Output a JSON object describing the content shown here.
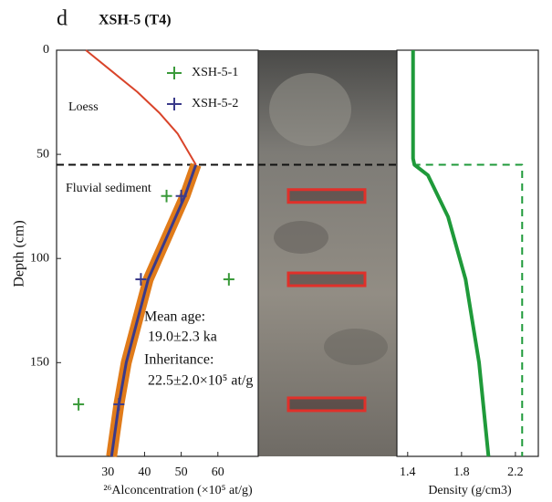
{
  "panel_label": "d",
  "title": "XSH-5 (T4)",
  "chart_data": [
    {
      "type": "scatter",
      "x_label": "²⁶Alconcentration (×10⁵ at/g)",
      "y_label": "Depth (cm)",
      "xlim": [
        16,
        71
      ],
      "ylim": [
        0,
        195
      ],
      "xticks": [
        30,
        40,
        50,
        60
      ],
      "yticks": [
        0,
        50,
        100,
        150
      ],
      "boundary_depth": 55,
      "annotations": [
        "Loess",
        "Fluvial sediment",
        "Mean age:",
        "19.0±2.3 ka",
        "Inheritance:",
        "22.5±2.0×10⁵ at/g"
      ],
      "series": [
        {
          "name": "XSH-5-1",
          "color": "#3a9a3a",
          "x": [
            46,
            63,
            22
          ],
          "y": [
            70,
            110,
            170
          ],
          "xerr": [
            1.5,
            1.5,
            1.5
          ],
          "yerr": [
            3,
            3,
            3
          ]
        },
        {
          "name": "XSH-5-2",
          "color": "#3a3a8a",
          "x": [
            50,
            39,
            33
          ],
          "y": [
            70,
            110,
            170
          ],
          "xerr": [
            1.5,
            1.5,
            1.5
          ],
          "yerr": [
            3,
            3,
            3
          ]
        }
      ],
      "lines": [
        {
          "color": "#e07b1a",
          "width": 12,
          "x": [
            54,
            51,
            41,
            35,
            33,
            31
          ],
          "y": [
            55,
            70,
            110,
            150,
            170,
            195
          ]
        },
        {
          "color": "#3a3a8a",
          "width": 3,
          "x": [
            54,
            51,
            41,
            35,
            33,
            31
          ],
          "y": [
            55,
            70,
            110,
            150,
            170,
            195
          ]
        },
        {
          "color": "#d9442a",
          "width": 2,
          "x": [
            24,
            31,
            38,
            44,
            49,
            54
          ],
          "y": [
            0,
            10,
            20,
            30,
            40,
            55
          ]
        }
      ]
    },
    {
      "type": "line",
      "x_label": "Density (g/cm3)",
      "xlim": [
        1.32,
        2.37
      ],
      "ylim": [
        0,
        195
      ],
      "xticks": [
        1.4,
        1.8,
        2.2
      ],
      "lines": [
        {
          "color": "#1f9a3a",
          "width": 4,
          "x": [
            1.44,
            1.44,
            1.45,
            1.55,
            1.7,
            1.83,
            1.93,
            2.0
          ],
          "y": [
            0,
            52,
            55,
            60,
            80,
            110,
            150,
            195
          ]
        },
        {
          "color": "#1f9a3a",
          "width": 2,
          "dashed": true,
          "x": [
            1.44,
            2.25,
            2.25
          ],
          "y": [
            55,
            55,
            195
          ]
        }
      ]
    }
  ]
}
